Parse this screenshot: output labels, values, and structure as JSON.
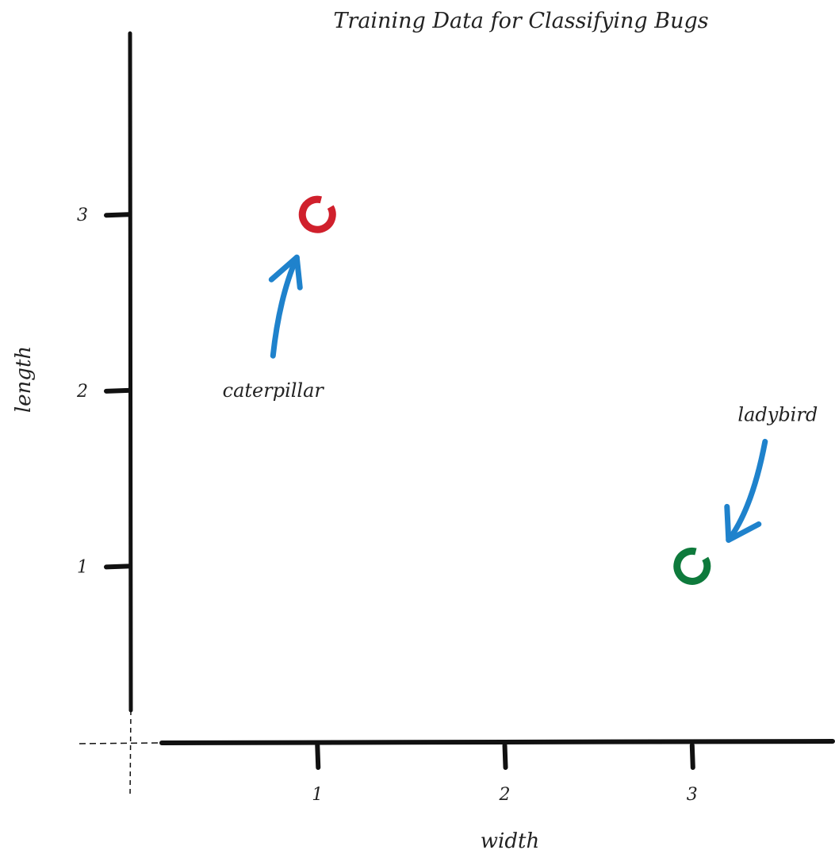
{
  "chart_data": {
    "type": "scatter",
    "title": "Training Data for Classifying Bugs",
    "xlabel": "width",
    "ylabel": "length",
    "xlim": [
      0,
      3.75
    ],
    "ylim": [
      0,
      4.03
    ],
    "xticks": [
      "1",
      "2",
      "3"
    ],
    "yticks": [
      "1",
      "2",
      "3"
    ],
    "grid": false,
    "points": [
      {
        "label": "caterpillar",
        "x": 1,
        "y": 3,
        "color": "#d0202c"
      },
      {
        "label": "ladybird",
        "x": 3,
        "y": 1,
        "color": "#0e7a3c"
      }
    ],
    "annotation_color": "#1f82cc",
    "axis_color": "#111111"
  }
}
